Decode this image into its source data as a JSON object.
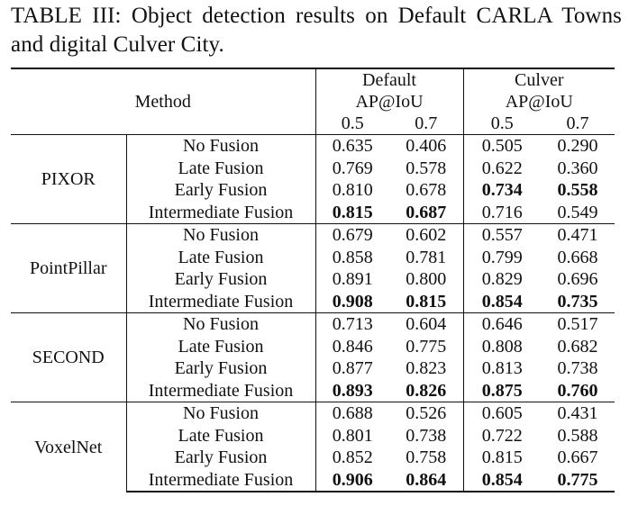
{
  "caption": "TABLE III: Object detection results on Default CARLA Towns and digital Culver City.",
  "header": {
    "method_label": "Method",
    "default_label": "Default",
    "culver_label": "Culver",
    "metric_label": "AP@IoU",
    "iou_thresholds": [
      "0.5",
      "0.7",
      "0.5",
      "0.7"
    ]
  },
  "groups": [
    {
      "method": "PIXOR",
      "rows": [
        {
          "variant": "No Fusion",
          "values": [
            "0.635",
            "0.406",
            "0.505",
            "0.290"
          ],
          "bold": [
            false,
            false,
            false,
            false
          ]
        },
        {
          "variant": "Late Fusion",
          "values": [
            "0.769",
            "0.578",
            "0.622",
            "0.360"
          ],
          "bold": [
            false,
            false,
            false,
            false
          ]
        },
        {
          "variant": "Early Fusion",
          "values": [
            "0.810",
            "0.678",
            "0.734",
            "0.558"
          ],
          "bold": [
            false,
            false,
            true,
            true
          ]
        },
        {
          "variant": "Intermediate Fusion",
          "values": [
            "0.815",
            "0.687",
            "0.716",
            "0.549"
          ],
          "bold": [
            true,
            true,
            false,
            false
          ]
        }
      ]
    },
    {
      "method": "PointPillar",
      "rows": [
        {
          "variant": "No Fusion",
          "values": [
            "0.679",
            "0.602",
            "0.557",
            "0.471"
          ],
          "bold": [
            false,
            false,
            false,
            false
          ]
        },
        {
          "variant": "Late Fusion",
          "values": [
            "0.858",
            "0.781",
            "0.799",
            "0.668"
          ],
          "bold": [
            false,
            false,
            false,
            false
          ]
        },
        {
          "variant": "Early Fusion",
          "values": [
            "0.891",
            "0.800",
            "0.829",
            "0.696"
          ],
          "bold": [
            false,
            false,
            false,
            false
          ]
        },
        {
          "variant": "Intermediate Fusion",
          "values": [
            "0.908",
            "0.815",
            "0.854",
            "0.735"
          ],
          "bold": [
            true,
            true,
            true,
            true
          ]
        }
      ]
    },
    {
      "method": "SECOND",
      "rows": [
        {
          "variant": "No Fusion",
          "values": [
            "0.713",
            "0.604",
            "0.646",
            "0.517"
          ],
          "bold": [
            false,
            false,
            false,
            false
          ]
        },
        {
          "variant": "Late Fusion",
          "values": [
            "0.846",
            "0.775",
            "0.808",
            "0.682"
          ],
          "bold": [
            false,
            false,
            false,
            false
          ]
        },
        {
          "variant": "Early Fusion",
          "values": [
            "0.877",
            "0.823",
            "0.813",
            "0.738"
          ],
          "bold": [
            false,
            false,
            false,
            false
          ]
        },
        {
          "variant": "Intermediate Fusion",
          "values": [
            "0.893",
            "0.826",
            "0.875",
            "0.760"
          ],
          "bold": [
            true,
            true,
            true,
            true
          ]
        }
      ]
    },
    {
      "method": "VoxelNet",
      "rows": [
        {
          "variant": "No Fusion",
          "values": [
            "0.688",
            "0.526",
            "0.605",
            "0.431"
          ],
          "bold": [
            false,
            false,
            false,
            false
          ]
        },
        {
          "variant": "Late Fusion",
          "values": [
            "0.801",
            "0.738",
            "0.722",
            "0.588"
          ],
          "bold": [
            false,
            false,
            false,
            false
          ]
        },
        {
          "variant": "Early Fusion",
          "values": [
            "0.852",
            "0.758",
            "0.815",
            "0.667"
          ],
          "bold": [
            false,
            false,
            false,
            false
          ]
        },
        {
          "variant": "Intermediate Fusion",
          "values": [
            "0.906",
            "0.864",
            "0.854",
            "0.775"
          ],
          "bold": [
            true,
            true,
            true,
            true
          ]
        }
      ]
    }
  ]
}
